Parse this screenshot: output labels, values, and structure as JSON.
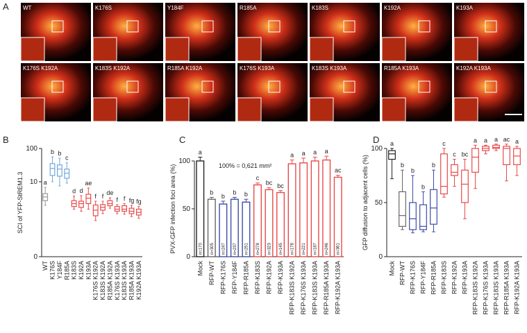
{
  "panel_labels": [
    "A",
    "B",
    "C",
    "D"
  ],
  "panel_a": {
    "labels": [
      "WT",
      "K176S",
      "Y184F",
      "R185A",
      "K183S",
      "K192A",
      "K193A",
      "K176S K192A",
      "K183S K192A",
      "R185A K192A",
      "K176S K193A",
      "K183S K193A",
      "R185A K193A",
      "K192A K193A"
    ]
  },
  "chart_data": [
    {
      "type": "box",
      "y_label": "SCI of  YFP-StREM1.3",
      "yscale": "log",
      "ylim": [
        0.056,
        100
      ],
      "yticks": [
        {
          "value": 0.056,
          "label": "0"
        },
        10,
        100
      ],
      "categories": [
        "WT",
        "K176S",
        "Y184F",
        "R185A",
        "K183S",
        "K192A",
        "K193A",
        "K176S K192A",
        "K183S K192A",
        "R185A K192A",
        "K176S K193A",
        "K183S K193A",
        "R185A K193A",
        "K192A K193A"
      ],
      "min": [
        1.96,
        10,
        7.5,
        9.1,
        1.5,
        1.3,
        1.5,
        0.68,
        1.1,
        1.6,
        1.1,
        1.05,
        0.9,
        0.8
      ],
      "q1": [
        2.7,
        15.4,
        14.7,
        12.7,
        1.8,
        1.7,
        2.2,
        0.95,
        1.4,
        1.9,
        1.3,
        1.3,
        1.1,
        1.0
      ],
      "median": [
        3.5,
        25,
        24,
        18,
        2.2,
        2.2,
        3.2,
        1.4,
        1.7,
        2.2,
        1.5,
        1.5,
        1.3,
        1.2
      ],
      "q3": [
        4.4,
        35,
        32,
        24,
        2.7,
        2.6,
        4.2,
        2.0,
        2.05,
        2.7,
        1.8,
        1.9,
        1.6,
        1.5
      ],
      "max": [
        6.8,
        56,
        51,
        37,
        3.7,
        3.8,
        6.5,
        2.6,
        2.6,
        3.3,
        2.05,
        2.2,
        1.95,
        1.8
      ],
      "letters": [
        "a",
        "b",
        "b",
        "c",
        "d",
        "d",
        "ae",
        "f",
        "f",
        "de",
        "f",
        "f",
        "fg",
        "fg"
      ],
      "colors": [
        "#999999",
        "#6fa8dc",
        "#6fa8dc",
        "#6fa8dc",
        "#e84a4a",
        "#e84a4a",
        "#e84a4a",
        "#e84a4a",
        "#e84a4a",
        "#e84a4a",
        "#e84a4a",
        "#e84a4a",
        "#e84a4a",
        "#e84a4a"
      ]
    },
    {
      "type": "bar",
      "y_label": "PVX-GFP infection foci area (%)",
      "annotation": "100% = 0,621 mm²",
      "ylim": [
        0,
        100
      ],
      "yticks": [
        0,
        50,
        100
      ],
      "categories": [
        "Mock",
        "RFP-WT",
        "RFP-K176S",
        "RFP-Y184F",
        "RFP-R185A",
        "RFP-K183S",
        "RFP-K192A",
        "RFP-K193A",
        "RFP-K183S K192A",
        "RFP-K176S K193A",
        "RFP-K183S K193A",
        "RFP-R185A K193A",
        "RFP-K192A K193A"
      ],
      "values": [
        100,
        60,
        55,
        60,
        57,
        75,
        70,
        67,
        97,
        98,
        100,
        101,
        83
      ],
      "errors": [
        4,
        2,
        3,
        2,
        3,
        2,
        2,
        2,
        4,
        5,
        4,
        4,
        2
      ],
      "letters": [
        "a",
        "b",
        "b",
        "b",
        "b",
        "c",
        "bc",
        "bc",
        "a",
        "a",
        "a",
        "a",
        "ac"
      ],
      "n_labels": [
        "n=170",
        "n=305",
        "n=247",
        "n=237",
        "n=251",
        "n=278",
        "n=323",
        "n=145",
        "n=178",
        "n=221",
        "n=187",
        "n=246",
        "n=361"
      ],
      "colors": [
        "#222222",
        "#666666",
        "#3b4da8",
        "#3b4da8",
        "#3b4da8",
        "#e84a4a",
        "#e84a4a",
        "#e84a4a",
        "#e84a4a",
        "#e84a4a",
        "#e84a4a",
        "#e84a4a",
        "#e84a4a"
      ]
    },
    {
      "type": "box",
      "y_label": "GFP diffusion to adjacent cells (%)",
      "ylim": [
        0,
        100
      ],
      "yticks": [
        0,
        50,
        100
      ],
      "categories": [
        "Mock",
        "RFP-WT",
        "RFP-K176S",
        "RFP-Y184F",
        "RFP-R185A",
        "RFP-K183S",
        "RFP-K192A",
        "RFP-K193A",
        "RFP-K183S K192A",
        "RFP-K176S K193A",
        "RFP-K183S K193A",
        "RFP-R185A K193A",
        "RFP-K192A K193A"
      ],
      "min": [
        72,
        25,
        22,
        23,
        23,
        55,
        65,
        35,
        63,
        95,
        98,
        70,
        75
      ],
      "q1": [
        90,
        28,
        25,
        25,
        30,
        58,
        75,
        50,
        78,
        98,
        100,
        85,
        85
      ],
      "median": [
        95,
        38,
        35,
        28,
        45,
        65,
        78,
        67,
        92,
        100,
        101,
        100,
        93
      ],
      "q3": [
        98,
        60,
        50,
        48,
        62,
        95,
        85,
        80,
        100,
        102,
        103,
        102,
        100
      ],
      "max": [
        100,
        80,
        75,
        60,
        80,
        100,
        90,
        90,
        103,
        103,
        104,
        104,
        102
      ],
      "letters": [
        "a",
        "b",
        "b",
        "b",
        "b",
        "c",
        "c",
        "bc",
        "a",
        "a",
        "a",
        "ac",
        "a"
      ],
      "colors": [
        "#222222",
        "#666666",
        "#3b4da8",
        "#3b4da8",
        "#3b4da8",
        "#e84a4a",
        "#e84a4a",
        "#e84a4a",
        "#e84a4a",
        "#e84a4a",
        "#e84a4a",
        "#e84a4a",
        "#e84a4a"
      ]
    }
  ]
}
